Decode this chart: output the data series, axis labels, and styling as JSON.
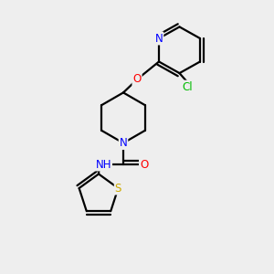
{
  "background_color": "#eeeeee",
  "atom_colors": {
    "C": "#000000",
    "N": "#0000ff",
    "O": "#ff0000",
    "S": "#ccaa00",
    "Cl": "#00bb00",
    "H": "#555555"
  },
  "bond_color": "#000000",
  "bond_width": 1.6,
  "font_size": 8.5
}
